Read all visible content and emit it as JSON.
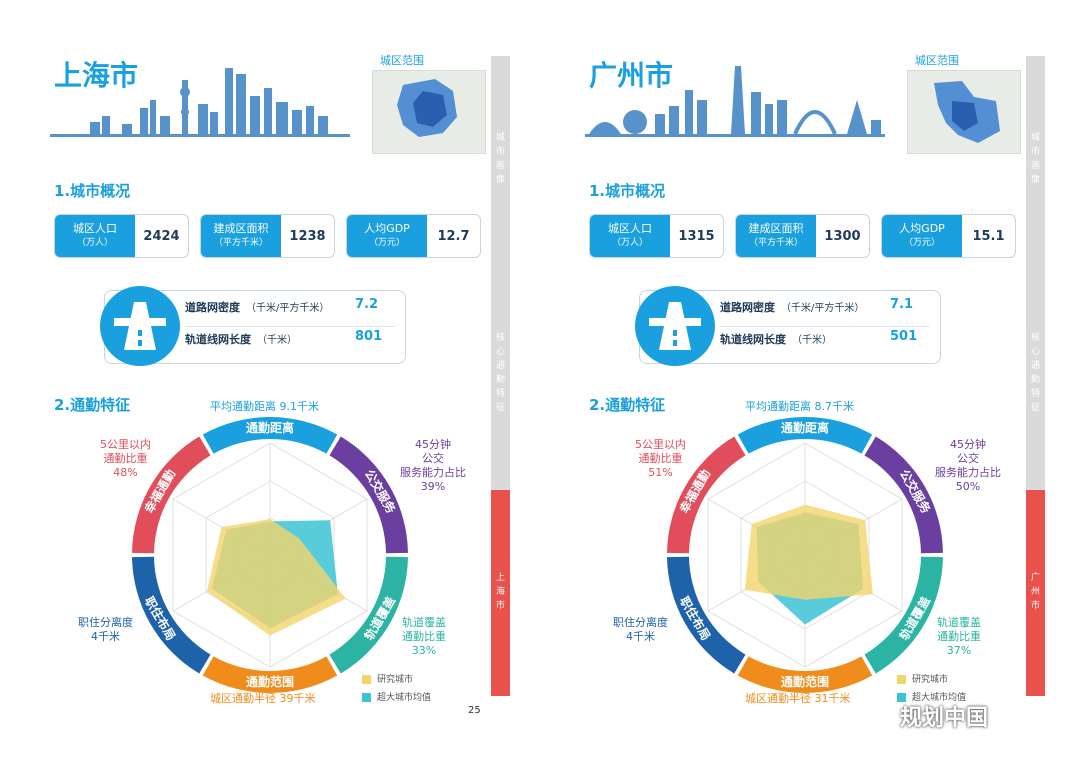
{
  "pages": [
    {
      "city": "上海市",
      "map_label": "城区范围",
      "section1": "1.城市概况",
      "stats": [
        {
          "label": "城区人口",
          "unit": "（万人）",
          "value": "2424"
        },
        {
          "label": "建成区面积",
          "unit": "（平方千米）",
          "value": "1238"
        },
        {
          "label": "人均GDP",
          "unit": "（万元）",
          "value": "12.7"
        }
      ],
      "road": {
        "density_label": "道路网密度",
        "density_unit": "（千米/平方千米）",
        "density_value": "7.2",
        "rail_label": "轨道线网长度",
        "rail_unit": "（千米）",
        "rail_value": "801"
      },
      "section2": "2.通勤特征",
      "ring_labels": [
        "通勤距离",
        "公交服务",
        "轨道覆盖",
        "通勤范围",
        "职住布局",
        "幸福通勤"
      ],
      "annotations": {
        "top": "平均通勤距离 9.1千米",
        "right_top": [
          "45分钟",
          "公交",
          "服务能力占比",
          "39%"
        ],
        "right_bottom": [
          "轨道覆盖",
          "通勤比重",
          "33%"
        ],
        "bottom": "城区通勤半径 39千米",
        "left_bottom": [
          "职住分离度",
          "4千米"
        ],
        "left_top": [
          "5公里以内",
          "通勤比重",
          "48%"
        ]
      },
      "chart_data": {
        "type": "radar",
        "axes": [
          "通勤距离",
          "公交服务",
          "轨道覆盖",
          "通勤范围",
          "职住布局",
          "幸福通勤"
        ],
        "series": [
          {
            "name": "研究城市",
            "values": [
              0.32,
              0.3,
              0.78,
              0.72,
              0.65,
              0.5
            ]
          },
          {
            "name": "超大城市均值",
            "values": [
              0.3,
              0.62,
              0.7,
              0.65,
              0.6,
              0.45
            ]
          }
        ],
        "range": [
          0,
          1
        ]
      },
      "legend": [
        "研究城市",
        "超大城市均值"
      ],
      "sidebar_top": [
        "城",
        "市",
        "画",
        "像"
      ],
      "sidebar_mid": [
        "核",
        "心",
        "通",
        "勤",
        "特",
        "征"
      ],
      "sidebar_bottom": [
        "上",
        "海",
        "市"
      ],
      "page_number": "25"
    },
    {
      "city": "广州市",
      "map_label": "城区范围",
      "section1": "1.城市概况",
      "stats": [
        {
          "label": "城区人口",
          "unit": "（万人）",
          "value": "1315"
        },
        {
          "label": "建成区面积",
          "unit": "（平方千米）",
          "value": "1300"
        },
        {
          "label": "人均GDP",
          "unit": "（万元）",
          "value": "15.1"
        }
      ],
      "road": {
        "density_label": "道路网密度",
        "density_unit": "（千米/平方千米）",
        "density_value": "7.1",
        "rail_label": "轨道线网长度",
        "rail_unit": "（千米）",
        "rail_value": "501"
      },
      "section2": "2.通勤特征",
      "ring_labels": [
        "通勤距离",
        "公交服务",
        "轨道覆盖",
        "通勤范围",
        "职住布局",
        "幸福通勤"
      ],
      "annotations": {
        "top": "平均通勤距离 8.7千米",
        "right_top": [
          "45分钟",
          "公交",
          "服务能力占比",
          "50%"
        ],
        "right_bottom": [
          "轨道覆盖",
          "通勤比重",
          "37%"
        ],
        "bottom": "城区通勤半径 31千米",
        "left_bottom": [
          "职住分离度",
          "4千米"
        ],
        "left_top": [
          "5公里以内",
          "通勤比重",
          "51%"
        ]
      },
      "chart_data": {
        "type": "radar",
        "axes": [
          "通勤距离",
          "公交服务",
          "轨道覆盖",
          "通勤范围",
          "职住布局",
          "幸福通勤"
        ],
        "series": [
          {
            "name": "研究城市",
            "values": [
              0.45,
              0.62,
              0.7,
              0.4,
              0.62,
              0.55
            ]
          },
          {
            "name": "超大城市均值",
            "values": [
              0.38,
              0.55,
              0.6,
              0.62,
              0.48,
              0.5
            ]
          }
        ],
        "range": [
          0,
          1
        ]
      },
      "legend": [
        "研究城市",
        "超大城市均值"
      ],
      "sidebar_top": [
        "城",
        "市",
        "画",
        "像"
      ],
      "sidebar_mid": [
        "核",
        "心",
        "通",
        "勤",
        "特",
        "征"
      ],
      "sidebar_bottom": [
        "广",
        "州",
        "市"
      ]
    }
  ],
  "watermark": "规划中国",
  "colors": {
    "blue": "#1aa0df",
    "purple": "#6b3fa0",
    "teal": "#2bb3a3",
    "orange": "#f08c1c",
    "navy": "#1e62a9",
    "red": "#e14d5a",
    "yellow": "#f2d46b",
    "cyan": "#3cc3d6"
  }
}
